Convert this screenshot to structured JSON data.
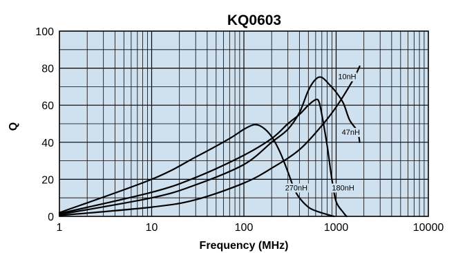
{
  "chart_data": {
    "type": "line",
    "title": "KQ0603",
    "xlabel": "Frequency (MHz)",
    "ylabel": "Q",
    "xscale": "log",
    "xlim": [
      1,
      10000
    ],
    "ylim": [
      0,
      100
    ],
    "xticks": [
      "1",
      "10",
      "100",
      "1000",
      "10000"
    ],
    "yticks": [
      "0",
      "20",
      "40",
      "60",
      "80",
      "100"
    ],
    "grid": true,
    "background_color": "#cfe0ef",
    "line_color": "#000000",
    "series": [
      {
        "name": "10nH",
        "points": [
          [
            1,
            0.5
          ],
          [
            10,
            5
          ],
          [
            30,
            9
          ],
          [
            100,
            18
          ],
          [
            200,
            26
          ],
          [
            400,
            36
          ],
          [
            700,
            49
          ],
          [
            1000,
            59
          ],
          [
            1500,
            73
          ],
          [
            1800,
            81
          ]
        ]
      },
      {
        "name": "47nH",
        "points": [
          [
            1,
            1
          ],
          [
            10,
            10
          ],
          [
            30,
            17
          ],
          [
            100,
            28
          ],
          [
            200,
            40
          ],
          [
            300,
            47
          ],
          [
            400,
            56
          ],
          [
            500,
            68
          ],
          [
            600,
            74
          ],
          [
            700,
            75
          ],
          [
            850,
            71
          ],
          [
            1000,
            67
          ],
          [
            1200,
            61
          ],
          [
            1400,
            52
          ],
          [
            1700,
            46
          ],
          [
            1800,
            40
          ]
        ]
      },
      {
        "name": "180nH",
        "points": [
          [
            1,
            1.5
          ],
          [
            10,
            13
          ],
          [
            30,
            21
          ],
          [
            100,
            33
          ],
          [
            200,
            42
          ],
          [
            300,
            50
          ],
          [
            400,
            55
          ],
          [
            500,
            60
          ],
          [
            600,
            63
          ],
          [
            650,
            62
          ],
          [
            700,
            55
          ],
          [
            800,
            38
          ],
          [
            900,
            20
          ],
          [
            1000,
            8
          ],
          [
            1200,
            2
          ],
          [
            1300,
            0
          ]
        ]
      },
      {
        "name": "270nH",
        "points": [
          [
            1,
            2
          ],
          [
            10,
            20
          ],
          [
            30,
            32
          ],
          [
            70,
            42
          ],
          [
            100,
            47
          ],
          [
            130,
            49.5
          ],
          [
            160,
            48
          ],
          [
            200,
            43
          ],
          [
            250,
            34
          ],
          [
            300,
            24
          ],
          [
            350,
            15
          ],
          [
            400,
            10
          ],
          [
            500,
            5
          ],
          [
            600,
            3
          ],
          [
            800,
            1
          ],
          [
            950,
            0
          ]
        ]
      }
    ],
    "annotations": [
      {
        "text": "10nH",
        "x": 1050,
        "y": 74
      },
      {
        "text": "47nH",
        "x": 1150,
        "y": 44
      },
      {
        "text": "180nH",
        "x": 900,
        "y": 14
      },
      {
        "text": "270nH",
        "x": 280,
        "y": 14
      }
    ]
  }
}
